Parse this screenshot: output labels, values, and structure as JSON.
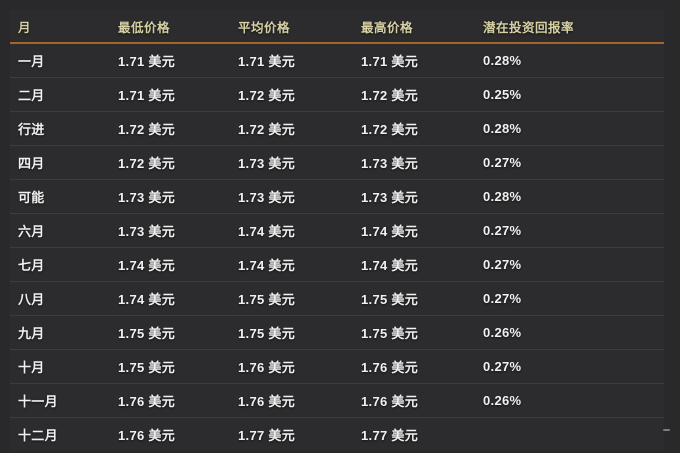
{
  "colors": {
    "page_background": "#29292b",
    "table_background": "#2c2c2e",
    "header_text": "#d6d0a2",
    "header_rule": "#a5662b",
    "body_text": "#f1f1f1",
    "row_separator": "#3d3d3f"
  },
  "table": {
    "columns": [
      {
        "key": "month",
        "label": "月"
      },
      {
        "key": "min",
        "label": "最低价格"
      },
      {
        "key": "avg",
        "label": "平均价格"
      },
      {
        "key": "max",
        "label": "最高价格"
      },
      {
        "key": "roi",
        "label": "潜在投资回报率"
      }
    ],
    "rows": [
      {
        "month": "一月",
        "min": "1.71 美元",
        "avg": "1.71 美元",
        "max": "1.71 美元",
        "roi": "0.28%"
      },
      {
        "month": "二月",
        "min": "1.71 美元",
        "avg": "1.72 美元",
        "max": "1.72 美元",
        "roi": "0.25%"
      },
      {
        "month": "行进",
        "min": "1.72 美元",
        "avg": "1.72 美元",
        "max": "1.72 美元",
        "roi": "0.28%"
      },
      {
        "month": "四月",
        "min": "1.72 美元",
        "avg": "1.73 美元",
        "max": "1.73 美元",
        "roi": "0.27%"
      },
      {
        "month": "可能",
        "min": "1.73 美元",
        "avg": "1.73 美元",
        "max": "1.73 美元",
        "roi": "0.28%"
      },
      {
        "month": "六月",
        "min": "1.73 美元",
        "avg": "1.74 美元",
        "max": "1.74 美元",
        "roi": "0.27%"
      },
      {
        "month": "七月",
        "min": "1.74 美元",
        "avg": "1.74 美元",
        "max": "1.74 美元",
        "roi": "0.27%"
      },
      {
        "month": "八月",
        "min": "1.74 美元",
        "avg": "1.75 美元",
        "max": "1.75 美元",
        "roi": "0.27%"
      },
      {
        "month": "九月",
        "min": "1.75 美元",
        "avg": "1.75 美元",
        "max": "1.75 美元",
        "roi": "0.26%"
      },
      {
        "month": "十月",
        "min": "1.75 美元",
        "avg": "1.76 美元",
        "max": "1.76 美元",
        "roi": "0.27%"
      },
      {
        "month": "十一月",
        "min": "1.76 美元",
        "avg": "1.76 美元",
        "max": "1.76 美元",
        "roi": "0.26%"
      },
      {
        "month": "十二月",
        "min": "1.76 美元",
        "avg": "1.77 美元",
        "max": "1.77 美元",
        "roi": ""
      }
    ]
  },
  "chart_data": {
    "type": "table",
    "title": "",
    "categories": [
      "一月",
      "二月",
      "行进",
      "四月",
      "可能",
      "六月",
      "七月",
      "八月",
      "九月",
      "十月",
      "十一月",
      "十二月"
    ],
    "series": [
      {
        "name": "最低价格",
        "unit": "美元",
        "values": [
          1.71,
          1.71,
          1.72,
          1.72,
          1.73,
          1.73,
          1.74,
          1.74,
          1.75,
          1.75,
          1.76,
          1.76
        ]
      },
      {
        "name": "平均价格",
        "unit": "美元",
        "values": [
          1.71,
          1.72,
          1.72,
          1.73,
          1.73,
          1.74,
          1.74,
          1.75,
          1.75,
          1.76,
          1.76,
          1.77
        ]
      },
      {
        "name": "最高价格",
        "unit": "美元",
        "values": [
          1.71,
          1.72,
          1.72,
          1.73,
          1.73,
          1.74,
          1.74,
          1.75,
          1.75,
          1.76,
          1.76,
          1.77
        ]
      },
      {
        "name": "潜在投资回报率",
        "unit": "%",
        "values": [
          0.28,
          0.25,
          0.28,
          0.27,
          0.28,
          0.27,
          0.27,
          0.27,
          0.26,
          0.27,
          0.26,
          null
        ]
      }
    ],
    "legend_position": "none",
    "grid": "horizontal-row-separators"
  }
}
